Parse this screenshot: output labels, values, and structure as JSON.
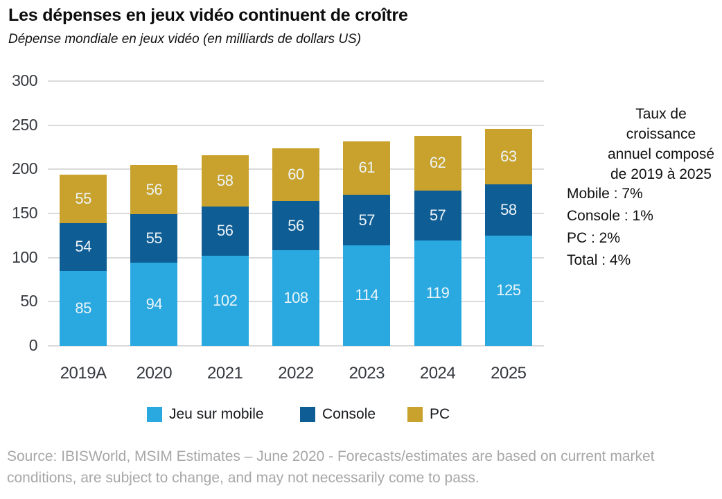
{
  "header": {
    "title": "Les dépenses en jeux vidéo continuent de croître",
    "subtitle": "Dépense mondiale en jeux vidéo (en milliards de dollars US)"
  },
  "chart_data": {
    "type": "bar",
    "stacked": true,
    "title": "Dépense mondiale en jeux vidéo (en milliards de dollars US)",
    "categories": [
      "2019A",
      "2020",
      "2021",
      "2022",
      "2023",
      "2024",
      "2025"
    ],
    "series": [
      {
        "key": "mobile",
        "name": "Jeu sur mobile",
        "color": "#29A9E0",
        "values": [
          85,
          94,
          102,
          108,
          114,
          119,
          125
        ]
      },
      {
        "key": "console",
        "name": "Console",
        "color": "#0F5D95",
        "values": [
          54,
          55,
          56,
          56,
          57,
          57,
          58
        ]
      },
      {
        "key": "pc",
        "name": "PC",
        "color": "#C8A22C",
        "values": [
          55,
          56,
          58,
          60,
          61,
          62,
          63
        ]
      }
    ],
    "totals": [
      194,
      205,
      216,
      224,
      232,
      238,
      246
    ],
    "ylim": [
      0,
      300
    ],
    "yticks": [
      0,
      50,
      100,
      150,
      200,
      250,
      300
    ],
    "grid": true,
    "gridline_color": "#DADADA",
    "bar_label_color": "#EDF4F7",
    "legend_position": "bottom"
  },
  "side_panel": {
    "heading_lines": [
      "Taux de",
      "croissance",
      "annuel composé",
      "de 2019 à 2025"
    ],
    "stats": [
      "Mobile : 7%",
      "Console : 1%",
      "PC : 2%",
      "Total : 4%"
    ]
  },
  "source": {
    "line1": "Source: IBISWorld, MSIM Estimates – June 2020 - Forecasts/estimates are based on current market",
    "line2": "conditions, are subject to change, and may not necessarily come to pass."
  }
}
